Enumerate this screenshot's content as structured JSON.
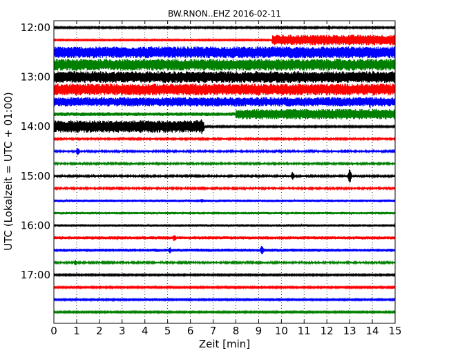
{
  "chart_data": {
    "type": "line",
    "title": "BW.RNON..EHZ 2016-02-11",
    "xlabel": "Zeit  [min]",
    "ylabel": "UTC (Lokalzeit = UTC + 01:00)",
    "xlim": [
      0,
      15
    ],
    "x_ticks": [
      "0",
      "1",
      "2",
      "3",
      "4",
      "5",
      "6",
      "7",
      "8",
      "9",
      "10",
      "11",
      "12",
      "13",
      "14",
      "15"
    ],
    "y_ticks": [
      {
        "row": 0,
        "label": "12:00"
      },
      {
        "row": 4,
        "label": "13:00"
      },
      {
        "row": 8,
        "label": "14:00"
      },
      {
        "row": 12,
        "label": "15:00"
      },
      {
        "row": 16,
        "label": "16:00"
      },
      {
        "row": 20,
        "label": "17:00"
      }
    ],
    "grid": {
      "x": true,
      "y": false,
      "style": "dotted"
    },
    "row_interval_minutes": 15,
    "row_colors": [
      "#000000",
      "#ff0000",
      "#0000ff",
      "#008000"
    ],
    "traces": [
      {
        "start": "12:00",
        "amp": 0.12,
        "events": [
          {
            "t": 12.1,
            "amp": 0.5
          }
        ]
      },
      {
        "start": "12:15",
        "amp": 0.1,
        "segments": [
          {
            "from": 9.6,
            "to": 15,
            "amp": 0.85
          }
        ]
      },
      {
        "start": "12:30",
        "amp": 0.95
      },
      {
        "start": "12:45",
        "amp": 0.95
      },
      {
        "start": "13:00",
        "amp": 0.95
      },
      {
        "start": "13:15",
        "amp": 0.95
      },
      {
        "start": "13:30",
        "amp": 0.75,
        "events": [
          {
            "t": 13.9,
            "amp": 1.2
          }
        ]
      },
      {
        "start": "13:45",
        "amp": 0.3,
        "segments": [
          {
            "from": 8.0,
            "to": 15,
            "amp": 0.85
          }
        ]
      },
      {
        "start": "14:00",
        "amp": 0.12,
        "segments": [
          {
            "from": 0,
            "to": 6.6,
            "amp": 1.0
          }
        ],
        "events": [
          {
            "t": 6.5,
            "amp": 1.4
          }
        ]
      },
      {
        "start": "14:15",
        "amp": 0.15
      },
      {
        "start": "14:30",
        "amp": 0.15,
        "events": [
          {
            "t": 1.05,
            "amp": 0.8
          },
          {
            "t": 12.8,
            "amp": 0.4
          }
        ]
      },
      {
        "start": "14:45",
        "amp": 0.15
      },
      {
        "start": "15:00",
        "amp": 0.15,
        "events": [
          {
            "t": 10.5,
            "amp": 0.8
          },
          {
            "t": 13.0,
            "amp": 1.3
          }
        ]
      },
      {
        "start": "15:15",
        "amp": 0.15
      },
      {
        "start": "15:30",
        "amp": 0.2,
        "events": [
          {
            "t": 6.5,
            "amp": 0.4
          }
        ]
      },
      {
        "start": "15:45",
        "amp": 0.2
      },
      {
        "start": "16:00",
        "amp": 0.2,
        "events": [
          {
            "t": 15.0,
            "amp": 0.4
          }
        ]
      },
      {
        "start": "16:15",
        "amp": 0.25,
        "events": [
          {
            "t": 5.3,
            "amp": 0.7
          },
          {
            "t": 2.8,
            "amp": 0.4
          }
        ]
      },
      {
        "start": "16:30",
        "amp": 0.25,
        "events": [
          {
            "t": 5.1,
            "amp": 0.6
          },
          {
            "t": 9.15,
            "amp": 1.0
          }
        ]
      },
      {
        "start": "16:45",
        "amp": 0.15,
        "events": [
          {
            "t": 0.95,
            "amp": 0.5
          }
        ]
      },
      {
        "start": "17:00",
        "amp": 0.12
      },
      {
        "start": "17:15",
        "amp": 0.12
      },
      {
        "start": "17:30",
        "amp": 0.12
      },
      {
        "start": "17:45",
        "amp": 0.12
      }
    ]
  }
}
